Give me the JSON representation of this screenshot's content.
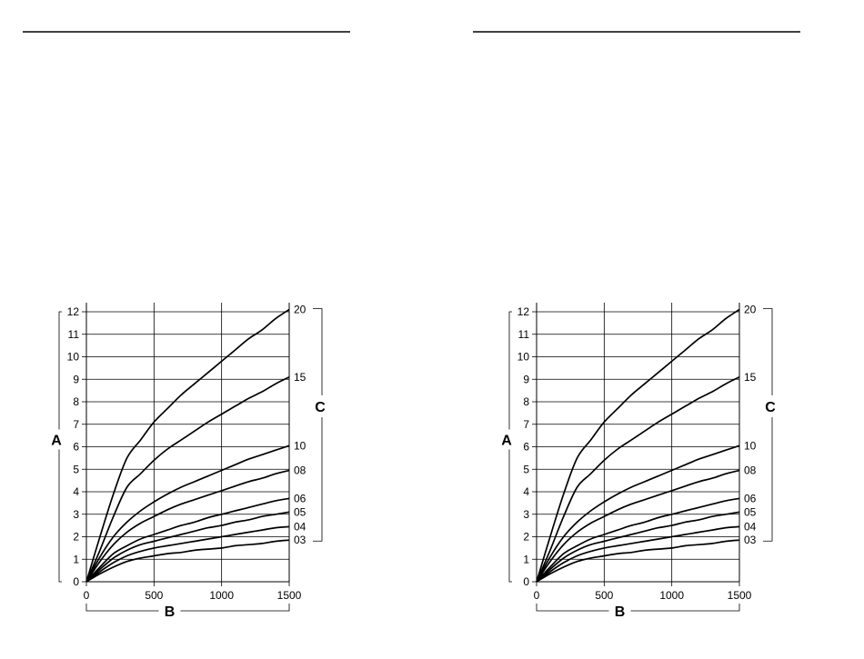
{
  "chart_data": [
    {
      "type": "line",
      "title": "",
      "xlabel": "B",
      "ylabel": "A",
      "right_label": "C",
      "xlim": [
        0,
        1500
      ],
      "ylim": [
        0,
        12
      ],
      "x_ticks": [
        "0",
        "500",
        "1000",
        "1500"
      ],
      "y_ticks": [
        "0",
        "1",
        "2",
        "3",
        "4",
        "5",
        "6",
        "7",
        "8",
        "9",
        "10",
        "11",
        "12"
      ],
      "grid": true,
      "x": [
        0,
        100,
        200,
        300,
        400,
        500,
        600,
        700,
        800,
        900,
        1000,
        1100,
        1200,
        1300,
        1400,
        1500
      ],
      "series": [
        {
          "name": "20",
          "values": [
            0,
            2.0,
            3.9,
            5.5,
            6.3,
            7.1,
            7.7,
            8.3,
            8.8,
            9.3,
            9.8,
            10.3,
            10.8,
            11.2,
            11.7,
            12.1
          ]
        },
        {
          "name": "15",
          "values": [
            0,
            1.4,
            2.9,
            4.2,
            4.8,
            5.4,
            5.9,
            6.3,
            6.7,
            7.1,
            7.45,
            7.8,
            8.15,
            8.45,
            8.8,
            9.1
          ]
        },
        {
          "name": "10",
          "values": [
            0,
            1.1,
            2.0,
            2.65,
            3.15,
            3.55,
            3.9,
            4.2,
            4.45,
            4.7,
            4.95,
            5.2,
            5.45,
            5.65,
            5.85,
            6.05
          ]
        },
        {
          "name": "08",
          "values": [
            0,
            0.9,
            1.65,
            2.2,
            2.6,
            2.9,
            3.2,
            3.45,
            3.65,
            3.85,
            4.05,
            4.25,
            4.45,
            4.6,
            4.8,
            4.95
          ]
        },
        {
          "name": "06",
          "values": [
            0,
            0.65,
            1.25,
            1.6,
            1.9,
            2.1,
            2.3,
            2.5,
            2.65,
            2.85,
            3.0,
            3.15,
            3.3,
            3.45,
            3.6,
            3.7
          ]
        },
        {
          "name": "05",
          "values": [
            0,
            0.55,
            1.05,
            1.4,
            1.65,
            1.8,
            1.95,
            2.1,
            2.25,
            2.4,
            2.5,
            2.65,
            2.75,
            2.9,
            3.0,
            3.1
          ]
        },
        {
          "name": "04",
          "values": [
            0,
            0.45,
            0.85,
            1.15,
            1.35,
            1.5,
            1.6,
            1.7,
            1.8,
            1.9,
            2.0,
            2.1,
            2.2,
            2.3,
            2.4,
            2.45
          ]
        },
        {
          "name": "03",
          "values": [
            0,
            0.35,
            0.65,
            0.9,
            1.05,
            1.15,
            1.25,
            1.3,
            1.4,
            1.45,
            1.5,
            1.6,
            1.65,
            1.7,
            1.8,
            1.85
          ]
        }
      ]
    },
    {
      "type": "line",
      "title": "",
      "xlabel": "B",
      "ylabel": "A",
      "right_label": "C",
      "xlim": [
        0,
        1500
      ],
      "ylim": [
        0,
        12
      ],
      "x_ticks": [
        "0",
        "500",
        "1000",
        "1500"
      ],
      "y_ticks": [
        "0",
        "1",
        "2",
        "3",
        "4",
        "5",
        "6",
        "7",
        "8",
        "9",
        "10",
        "11",
        "12"
      ],
      "grid": true,
      "x": [
        0,
        100,
        200,
        300,
        400,
        500,
        600,
        700,
        800,
        900,
        1000,
        1100,
        1200,
        1300,
        1400,
        1500
      ],
      "series": [
        {
          "name": "20",
          "values": [
            0,
            2.0,
            3.9,
            5.5,
            6.3,
            7.1,
            7.7,
            8.3,
            8.8,
            9.3,
            9.8,
            10.3,
            10.8,
            11.2,
            11.7,
            12.1
          ]
        },
        {
          "name": "15",
          "values": [
            0,
            1.4,
            2.9,
            4.2,
            4.8,
            5.4,
            5.9,
            6.3,
            6.7,
            7.1,
            7.45,
            7.8,
            8.15,
            8.45,
            8.8,
            9.1
          ]
        },
        {
          "name": "10",
          "values": [
            0,
            1.1,
            2.0,
            2.65,
            3.15,
            3.55,
            3.9,
            4.2,
            4.45,
            4.7,
            4.95,
            5.2,
            5.45,
            5.65,
            5.85,
            6.05
          ]
        },
        {
          "name": "08",
          "values": [
            0,
            0.9,
            1.65,
            2.2,
            2.6,
            2.9,
            3.2,
            3.45,
            3.65,
            3.85,
            4.05,
            4.25,
            4.45,
            4.6,
            4.8,
            4.95
          ]
        },
        {
          "name": "06",
          "values": [
            0,
            0.65,
            1.25,
            1.6,
            1.9,
            2.1,
            2.3,
            2.5,
            2.65,
            2.85,
            3.0,
            3.15,
            3.3,
            3.45,
            3.6,
            3.7
          ]
        },
        {
          "name": "05",
          "values": [
            0,
            0.55,
            1.05,
            1.4,
            1.65,
            1.8,
            1.95,
            2.1,
            2.25,
            2.4,
            2.5,
            2.65,
            2.75,
            2.9,
            3.0,
            3.1
          ]
        },
        {
          "name": "04",
          "values": [
            0,
            0.45,
            0.85,
            1.15,
            1.35,
            1.5,
            1.6,
            1.7,
            1.8,
            1.9,
            2.0,
            2.1,
            2.2,
            2.3,
            2.4,
            2.45
          ]
        },
        {
          "name": "03",
          "values": [
            0,
            0.35,
            0.65,
            0.9,
            1.05,
            1.15,
            1.25,
            1.3,
            1.4,
            1.45,
            1.5,
            1.6,
            1.65,
            1.7,
            1.8,
            1.85
          ]
        }
      ]
    }
  ]
}
